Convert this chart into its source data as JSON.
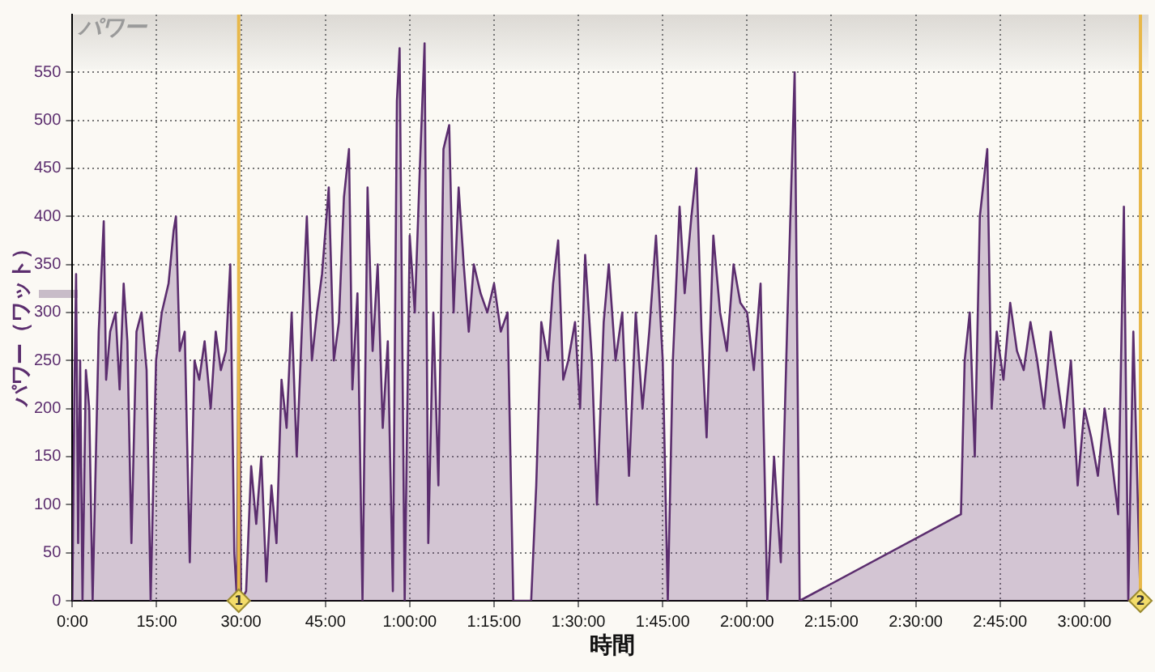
{
  "chart_data": {
    "type": "area",
    "title": "パワー",
    "xlabel": "時間",
    "ylabel": "パワー（ワット）",
    "series": [
      {
        "color": "#5b2d6e",
        "x": [
          0,
          0.36,
          0.66,
          1.02,
          1.38,
          1.8,
          2.4,
          3,
          3.6,
          4.68,
          5.58,
          6,
          6.72,
          7.68,
          8.4,
          9.12,
          9.78,
          10.5,
          11.4,
          12.3,
          13.2,
          13.92,
          14.88,
          15.9,
          17.1,
          18,
          18.42,
          19.08,
          19.98,
          20.88,
          21.72,
          22.56,
          23.52,
          24.6,
          25.5,
          26.4,
          27.3,
          28.08,
          28.8,
          29.28,
          29.58,
          30,
          30.9,
          31.8,
          32.7,
          33.6,
          34.5,
          35.4,
          36.3,
          37.2,
          38.1,
          39,
          39.9,
          40.8,
          41.7,
          42.6,
          43.5,
          44.4,
          45.6,
          46.5,
          47.4,
          48.3,
          49.2,
          49.8,
          50.7,
          51.6,
          52.5,
          53.4,
          54.3,
          55.2,
          56.1,
          57,
          57.72,
          58.2,
          59.1,
          60,
          60.9,
          61.8,
          62.64,
          63.3,
          64.2,
          65.1,
          66,
          67.02,
          67.8,
          68.7,
          69.6,
          70.5,
          71.4,
          72.6,
          73.8,
          75,
          76.2,
          77.4,
          78.42,
          81.6,
          82.5,
          83.4,
          84.6,
          85.5,
          86.4,
          87.3,
          88.2,
          89.4,
          90.3,
          91.2,
          92.4,
          93.3,
          94.5,
          95.4,
          96.6,
          97.8,
          99,
          100.2,
          101.4,
          102.6,
          103.8,
          105,
          105.9,
          106.8,
          108,
          108.9,
          110.1,
          111,
          111.9,
          112.8,
          114,
          115.2,
          116.4,
          117.6,
          118.8,
          120,
          121.2,
          122.4,
          123.6,
          124.8,
          126,
          127.2,
          128.46,
          129.36,
          158.04,
          158.7,
          159.6,
          160.5,
          161.4,
          162.72,
          163.5,
          164.4,
          165.6,
          166.8,
          168,
          169.2,
          170.4,
          171.6,
          172.8,
          174,
          175.2,
          176.4,
          177.6,
          178.8,
          180,
          181.2,
          182.4,
          183.6,
          184.8,
          186,
          187.02,
          187.8,
          188.7,
          189.96
        ],
        "values": [
          0,
          220,
          340,
          60,
          250,
          0,
          240,
          200,
          0,
          280,
          395,
          230,
          280,
          300,
          220,
          330,
          270,
          60,
          280,
          300,
          240,
          0,
          250,
          300,
          330,
          385,
          400,
          260,
          280,
          40,
          250,
          230,
          270,
          200,
          280,
          240,
          260,
          350,
          50,
          0,
          360,
          0,
          10,
          140,
          80,
          150,
          20,
          120,
          60,
          230,
          180,
          300,
          150,
          280,
          400,
          250,
          300,
          340,
          430,
          250,
          290,
          420,
          470,
          220,
          320,
          0,
          430,
          260,
          350,
          180,
          270,
          10,
          520,
          575,
          0,
          380,
          300,
          450,
          580,
          60,
          300,
          120,
          470,
          495,
          300,
          430,
          350,
          280,
          350,
          320,
          300,
          330,
          280,
          300,
          0,
          0,
          120,
          290,
          250,
          330,
          375,
          230,
          250,
          290,
          200,
          360,
          250,
          100,
          290,
          350,
          250,
          300,
          130,
          300,
          200,
          280,
          380,
          250,
          0,
          250,
          410,
          320,
          400,
          450,
          280,
          170,
          380,
          300,
          260,
          350,
          310,
          300,
          240,
          330,
          0,
          150,
          40,
          300,
          550,
          0,
          90,
          250,
          300,
          150,
          400,
          470,
          200,
          280,
          230,
          310,
          260,
          240,
          290,
          250,
          200,
          280,
          230,
          180,
          250,
          120,
          200,
          170,
          130,
          200,
          150,
          90,
          410,
          0,
          280,
          0
        ]
      }
    ],
    "xlim": [
      0,
      191.4
    ],
    "xticks": [
      {
        "value": 0,
        "label": "0:00"
      },
      {
        "value": 15,
        "label": "15:00"
      },
      {
        "value": 30,
        "label": "30:00"
      },
      {
        "value": 45,
        "label": "45:00"
      },
      {
        "value": 60,
        "label": "1:00:00"
      },
      {
        "value": 75,
        "label": "1:15:00"
      },
      {
        "value": 90,
        "label": "1:30:00"
      },
      {
        "value": 105,
        "label": "1:45:00"
      },
      {
        "value": 120,
        "label": "2:00:00"
      },
      {
        "value": 135,
        "label": "2:15:00"
      },
      {
        "value": 150,
        "label": "2:30:00"
      },
      {
        "value": 165,
        "label": "2:45:00"
      },
      {
        "value": 180,
        "label": "3:00:00"
      }
    ],
    "ylim": [
      0,
      610
    ],
    "yticks": [
      0,
      50,
      100,
      150,
      200,
      250,
      300,
      350,
      400,
      450,
      500,
      550
    ],
    "grid": true,
    "ref_lines": [
      {
        "axis": "x",
        "value": 29.58,
        "color": "#e8b84a"
      },
      {
        "axis": "x",
        "value": 189.96,
        "color": "#e8b84a"
      }
    ],
    "annotations": [
      {
        "text": "1",
        "x": 29.58,
        "y": 0
      },
      {
        "text": "2",
        "x": 189.96,
        "y": 0
      }
    ]
  }
}
